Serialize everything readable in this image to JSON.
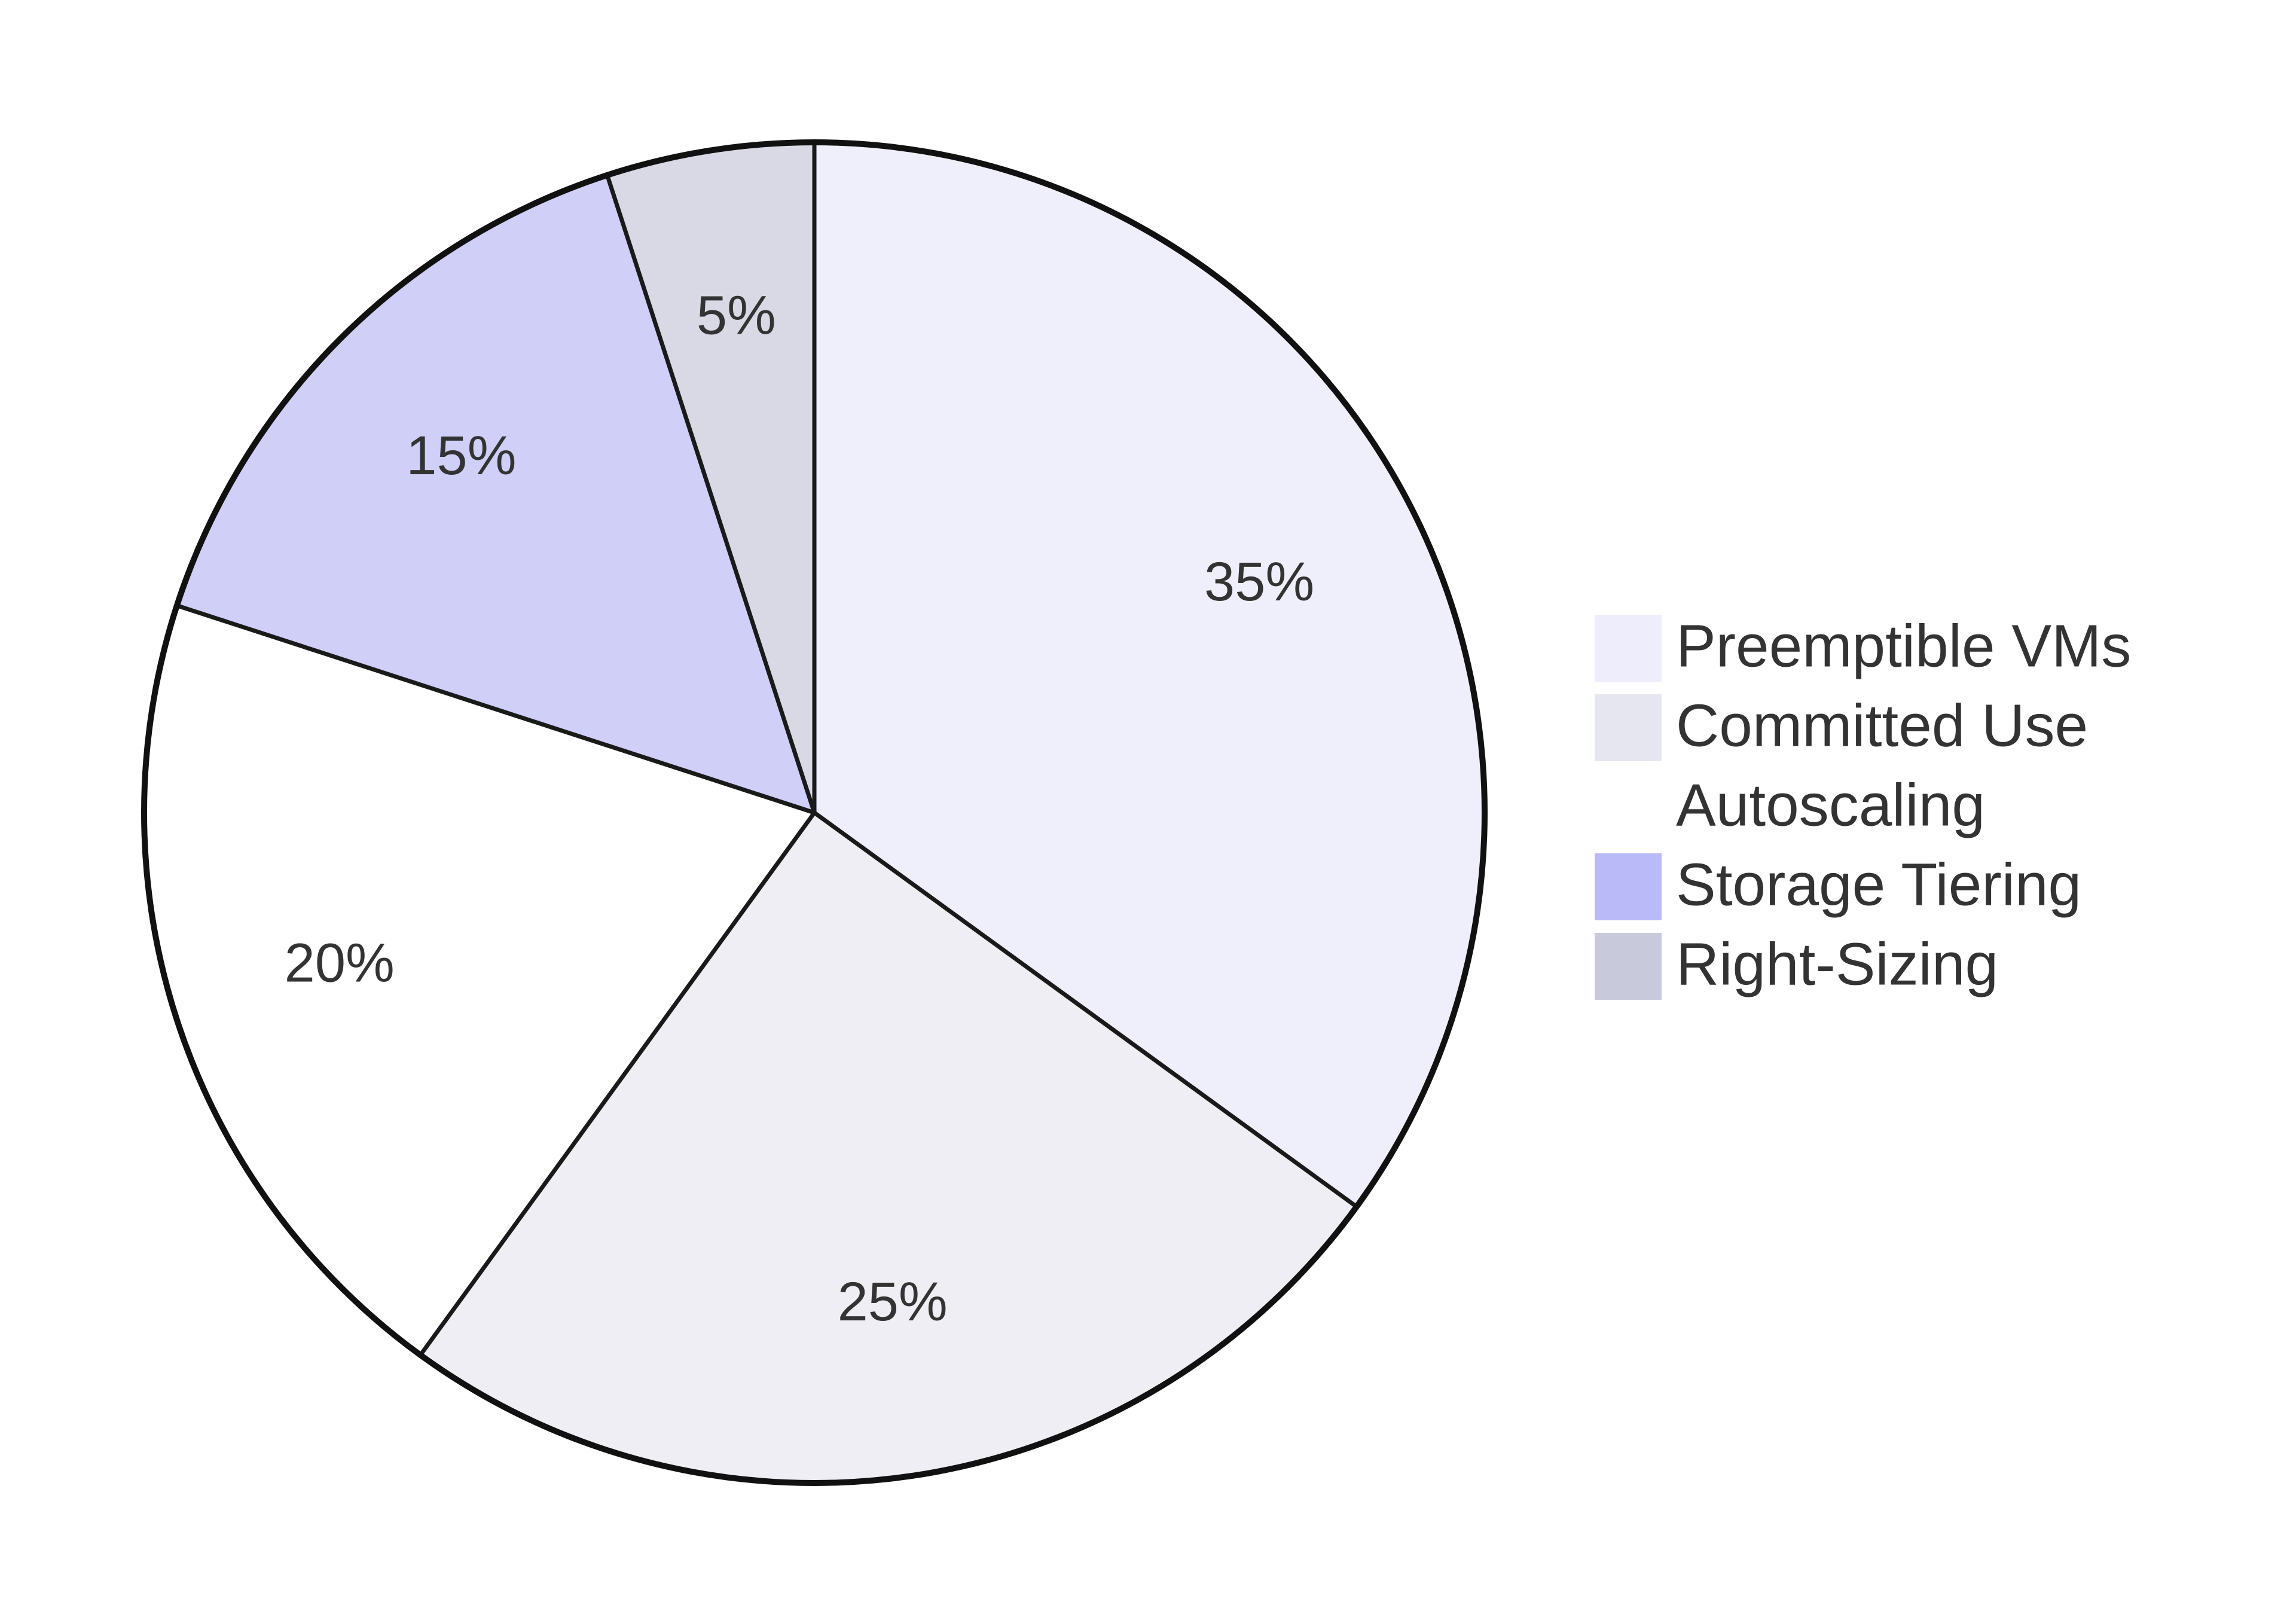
{
  "chart_data": {
    "type": "pie",
    "start_angle": "top",
    "direction": "clockwise",
    "legend_position": "right",
    "slices": [
      {
        "label": "Preemptible VMs",
        "value": 35,
        "value_label": "35%",
        "color": "#efeffb",
        "legend_color": "#ededfb"
      },
      {
        "label": "Committed Use",
        "value": 25,
        "value_label": "25%",
        "color": "#eeeef4",
        "legend_color": "#e6e6f0"
      },
      {
        "label": "Autoscaling",
        "value": 20,
        "value_label": "20%",
        "color": "#ffffff",
        "legend_color": "#ffffff"
      },
      {
        "label": "Storage Tiering",
        "value": 15,
        "value_label": "15%",
        "color": "#cfcff8",
        "legend_color": "#babaf8"
      },
      {
        "label": "Right-Sizing",
        "value": 5,
        "value_label": "5%",
        "color": "#d9d9e6",
        "legend_color": "#c9c9dc"
      }
    ]
  }
}
